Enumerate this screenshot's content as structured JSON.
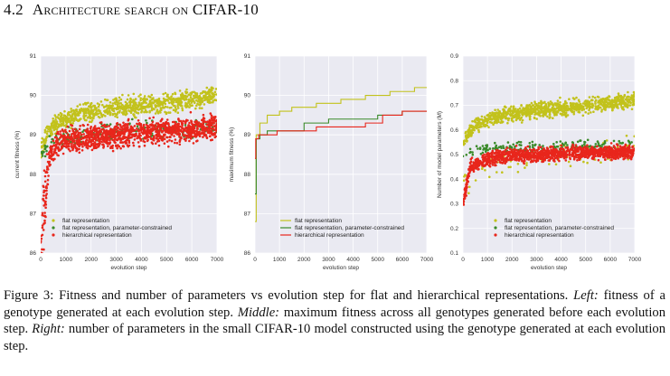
{
  "section": {
    "number": "4.2",
    "title": "Architecture search on CIFAR-10"
  },
  "caption": {
    "figure_label": "Figure 3:",
    "intro": "Fitness and number of parameters vs evolution step for flat and hierarchical representations.",
    "left_label": "Left:",
    "left_text": "fitness of a genotype generated at each evolution step.",
    "middle_label": "Middle:",
    "middle_text": "maximum fitness across all genotypes generated before each evolution step.",
    "right_label": "Right:",
    "right_text": "number of parameters in the small CIFAR-10 model constructed using the genotype generated at each evolution step."
  },
  "colors": {
    "flat": "#c2c21c",
    "flat_constrained": "#3a8a2a",
    "hierarchical": "#e8261c",
    "grid": "#ffffff",
    "plot_bg": "#eaeaf2"
  },
  "chart_data": [
    {
      "type": "scatter",
      "xlabel": "evolution step",
      "ylabel": "current fitness (%)",
      "xlim": [
        0,
        7000
      ],
      "ylim": [
        86,
        91
      ],
      "xticks": [
        "0",
        "1000",
        "2000",
        "3000",
        "4000",
        "5000",
        "6000",
        "7000"
      ],
      "yticks": [
        "86",
        "87",
        "88",
        "89",
        "90",
        "91"
      ],
      "grid": true,
      "legend_position": "bottom-left",
      "series": [
        {
          "name": "flat representation",
          "color_key": "flat",
          "x": [
            0,
            100,
            300,
            700,
            1500,
            3000,
            5000,
            7000
          ],
          "y": [
            88.6,
            88.8,
            89.1,
            89.3,
            89.5,
            89.7,
            89.8,
            90.0
          ]
        },
        {
          "name": "flat representation, parameter-constrained",
          "color_key": "flat_constrained",
          "x": [
            0,
            100,
            300,
            700,
            1500,
            3000,
            5000,
            7000
          ],
          "y": [
            88.4,
            88.6,
            88.8,
            88.9,
            89.0,
            89.1,
            89.1,
            89.2
          ]
        },
        {
          "name": "hierarchical representation",
          "color_key": "hierarchical",
          "x": [
            0,
            100,
            300,
            700,
            1500,
            3000,
            5000,
            7000
          ],
          "y": [
            86.5,
            87.8,
            88.5,
            88.8,
            88.9,
            89.0,
            89.1,
            89.2
          ]
        }
      ]
    },
    {
      "type": "line",
      "xlabel": "evolution step",
      "ylabel": "maximum fitness (%)",
      "xlim": [
        0,
        7000
      ],
      "ylim": [
        86,
        91
      ],
      "xticks": [
        "0",
        "1000",
        "2000",
        "3000",
        "4000",
        "5000",
        "6000",
        "7000"
      ],
      "yticks": [
        "86",
        "87",
        "88",
        "89",
        "90",
        "91"
      ],
      "grid": true,
      "legend_position": "bottom-right",
      "series": [
        {
          "name": "flat representation",
          "color_key": "flat",
          "x": [
            0,
            50,
            200,
            500,
            1000,
            1500,
            2500,
            3500,
            4500,
            5500,
            6500,
            7000
          ],
          "y": [
            86.8,
            89.0,
            89.3,
            89.5,
            89.6,
            89.7,
            89.8,
            89.9,
            90.0,
            90.1,
            90.2,
            90.2
          ]
        },
        {
          "name": "flat representation, parameter-constrained",
          "color_key": "flat_constrained",
          "x": [
            0,
            50,
            200,
            500,
            1000,
            2000,
            3000,
            4000,
            5000,
            6000,
            7000
          ],
          "y": [
            87.5,
            88.9,
            89.0,
            89.1,
            89.1,
            89.3,
            89.4,
            89.4,
            89.5,
            89.6,
            89.6
          ]
        },
        {
          "name": "hierarchical representation",
          "color_key": "hierarchical",
          "x": [
            0,
            30,
            150,
            400,
            900,
            1600,
            2500,
            3500,
            4500,
            5200,
            6000,
            7000
          ],
          "y": [
            88.4,
            88.9,
            89.0,
            89.0,
            89.1,
            89.1,
            89.2,
            89.2,
            89.3,
            89.5,
            89.6,
            89.6
          ]
        }
      ]
    },
    {
      "type": "scatter",
      "xlabel": "evolution step",
      "ylabel": "Number of model parameters (M)",
      "xlim": [
        0,
        7000
      ],
      "ylim": [
        0.1,
        0.9
      ],
      "xticks": [
        "0",
        "1000",
        "2000",
        "3000",
        "4000",
        "5000",
        "6000",
        "7000"
      ],
      "yticks": [
        "0.1",
        "0.2",
        "0.3",
        "0.4",
        "0.5",
        "0.6",
        "0.7",
        "0.8",
        "0.9"
      ],
      "grid": true,
      "legend_position": "bottom-right",
      "series": [
        {
          "name": "flat representation",
          "color_key": "flat",
          "x": [
            0,
            500,
            1500,
            3000,
            5000,
            7000
          ],
          "y": [
            0.55,
            0.62,
            0.66,
            0.68,
            0.7,
            0.72
          ]
        },
        {
          "name": "flat representation, parameter-constrained",
          "color_key": "flat_constrained",
          "x": [
            0,
            500,
            1500,
            3000,
            5000,
            7000
          ],
          "y": [
            0.5,
            0.52,
            0.53,
            0.53,
            0.54,
            0.54
          ]
        },
        {
          "name": "hierarchical representation",
          "color_key": "hierarchical",
          "x": [
            0,
            300,
            1000,
            2000,
            3000,
            5000,
            7000
          ],
          "y": [
            0.3,
            0.45,
            0.48,
            0.5,
            0.5,
            0.51,
            0.51
          ]
        }
      ]
    }
  ]
}
